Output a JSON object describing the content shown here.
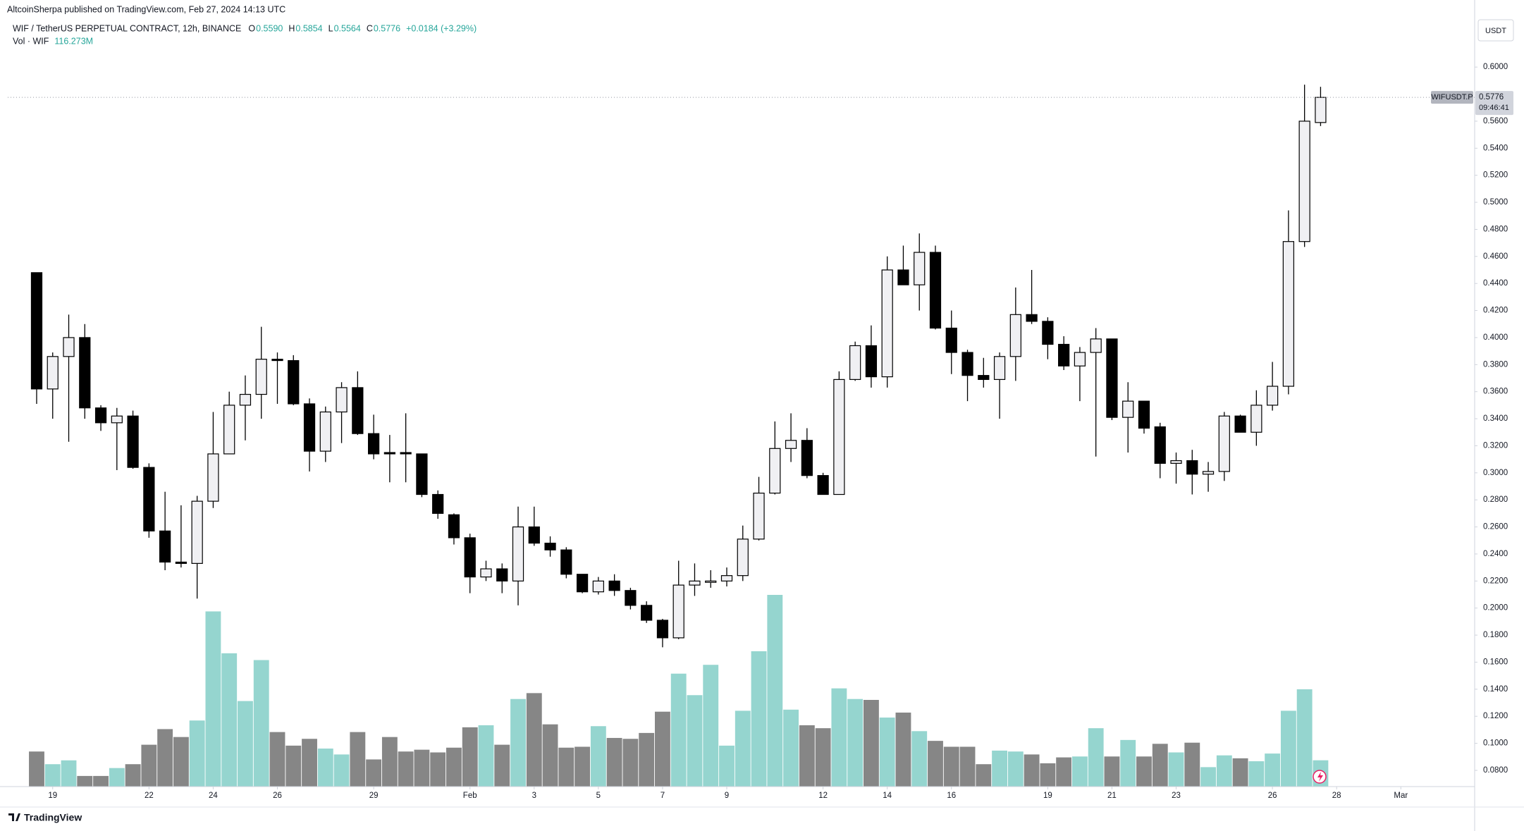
{
  "header": {
    "published": "AltcoinSherpa published on TradingView.com, Feb 27, 2024 14:13 UTC",
    "symbol": "WIF / TetherUS PERPETUAL CONTRACT, 12h, BINANCE",
    "ohlc_legend": [
      {
        "key": "O",
        "value": "0.5590"
      },
      {
        "key": "H",
        "value": "0.5854"
      },
      {
        "key": "L",
        "value": "0.5564"
      },
      {
        "key": "C",
        "value": "0.5776"
      }
    ],
    "change": "+0.0184 (+3.29%)",
    "vol_legend": "Vol · WIF",
    "vol_value": "116.273M",
    "currency": "USDT",
    "ticker": "WIFUSDT.P",
    "countdown": "09:46:41",
    "footer": "TradingView"
  },
  "chart_data": {
    "type": "candlestick",
    "open": [
      0.448,
      0.362,
      0.386,
      0.4,
      0.348,
      0.337,
      0.342,
      0.304,
      0.257,
      0.234,
      0.233,
      0.279,
      0.314,
      0.35,
      0.358,
      0.384,
      0.383,
      0.351,
      0.316,
      0.345,
      0.363,
      0.329,
      0.315,
      0.315,
      0.314,
      0.284,
      0.269,
      0.252,
      0.223,
      0.229,
      0.22,
      0.26,
      0.248,
      0.243,
      0.225,
      0.212,
      0.22,
      0.213,
      0.202,
      0.191,
      0.178,
      0.217,
      0.219,
      0.22,
      0.224,
      0.251,
      0.285,
      0.318,
      0.324,
      0.298,
      0.284,
      0.369,
      0.394,
      0.371,
      0.45,
      0.439,
      0.463,
      0.407,
      0.389,
      0.372,
      0.369,
      0.386,
      0.417,
      0.412,
      0.395,
      0.379,
      0.389,
      0.399,
      0.341,
      0.353,
      0.334,
      0.307,
      0.309,
      0.299,
      0.301,
      0.342,
      0.33,
      0.35,
      0.364,
      0.471,
      0.559
    ],
    "high": [
      0.448,
      0.389,
      0.417,
      0.41,
      0.35,
      0.348,
      0.346,
      0.307,
      0.286,
      0.276,
      0.283,
      0.345,
      0.36,
      0.372,
      0.408,
      0.389,
      0.387,
      0.355,
      0.349,
      0.367,
      0.375,
      0.343,
      0.328,
      0.344,
      0.314,
      0.287,
      0.27,
      0.255,
      0.235,
      0.233,
      0.275,
      0.275,
      0.253,
      0.245,
      0.225,
      0.223,
      0.225,
      0.215,
      0.205,
      0.192,
      0.235,
      0.233,
      0.228,
      0.23,
      0.261,
      0.297,
      0.338,
      0.344,
      0.333,
      0.3,
      0.375,
      0.397,
      0.409,
      0.46,
      0.468,
      0.477,
      0.468,
      0.42,
      0.391,
      0.385,
      0.389,
      0.437,
      0.45,
      0.415,
      0.401,
      0.393,
      0.407,
      0.399,
      0.367,
      0.353,
      0.337,
      0.315,
      0.317,
      0.308,
      0.345,
      0.343,
      0.361,
      0.382,
      0.494,
      0.587,
      0.5854
    ],
    "low": [
      0.351,
      0.34,
      0.323,
      0.34,
      0.331,
      0.302,
      0.303,
      0.252,
      0.228,
      0.23,
      0.207,
      0.274,
      0.314,
      0.324,
      0.34,
      0.351,
      0.35,
      0.301,
      0.308,
      0.322,
      0.328,
      0.31,
      0.293,
      0.293,
      0.282,
      0.266,
      0.247,
      0.211,
      0.22,
      0.211,
      0.202,
      0.246,
      0.238,
      0.222,
      0.211,
      0.21,
      0.209,
      0.199,
      0.189,
      0.171,
      0.177,
      0.209,
      0.215,
      0.216,
      0.22,
      0.25,
      0.284,
      0.308,
      0.296,
      0.284,
      0.284,
      0.368,
      0.363,
      0.363,
      0.439,
      0.42,
      0.406,
      0.373,
      0.353,
      0.363,
      0.34,
      0.368,
      0.41,
      0.384,
      0.376,
      0.353,
      0.312,
      0.339,
      0.315,
      0.329,
      0.296,
      0.292,
      0.284,
      0.286,
      0.294,
      0.33,
      0.32,
      0.346,
      0.358,
      0.467,
      0.5564
    ],
    "close": [
      0.362,
      0.386,
      0.4,
      0.348,
      0.337,
      0.342,
      0.304,
      0.257,
      0.234,
      0.233,
      0.279,
      0.314,
      0.35,
      0.358,
      0.384,
      0.383,
      0.351,
      0.316,
      0.345,
      0.363,
      0.329,
      0.314,
      0.314,
      0.314,
      0.284,
      0.27,
      0.252,
      0.223,
      0.229,
      0.22,
      0.26,
      0.248,
      0.243,
      0.225,
      0.212,
      0.22,
      0.213,
      0.202,
      0.191,
      0.178,
      0.217,
      0.22,
      0.22,
      0.224,
      0.251,
      0.285,
      0.318,
      0.324,
      0.298,
      0.284,
      0.369,
      0.394,
      0.371,
      0.45,
      0.439,
      0.463,
      0.407,
      0.389,
      0.372,
      0.369,
      0.386,
      0.417,
      0.412,
      0.395,
      0.379,
      0.389,
      0.399,
      0.341,
      0.353,
      0.333,
      0.307,
      0.309,
      0.299,
      0.301,
      0.342,
      0.33,
      0.35,
      0.364,
      0.471,
      0.56,
      0.5776
    ],
    "volume": [
      155,
      99,
      116,
      47,
      47,
      82,
      99,
      185,
      254,
      219,
      292,
      774,
      589,
      378,
      559,
      241,
      181,
      211,
      168,
      142,
      241,
      120,
      219,
      155,
      163,
      151,
      172,
      262,
      271,
      185,
      387,
      413,
      275,
      172,
      176,
      267,
      215,
      211,
      237,
      331,
      499,
      404,
      538,
      181,
      335,
      598,
      847,
      340,
      271,
      258,
      434,
      387,
      383,
      305,
      327,
      245,
      202,
      176,
      176,
      99,
      159,
      155,
      142,
      103,
      129,
      133,
      258,
      133,
      206,
      133,
      189,
      151,
      194,
      86,
      138,
      125,
      112,
      146,
      335,
      430,
      116.273
    ],
    "up_color": "#f0f0f3",
    "down_color": "#000000",
    "wick_color": "#000000",
    "volume_up_color": "#8fd3cc",
    "volume_down_color": "#808080",
    "xlim": [
      -1.8,
      89.6
    ],
    "xticks": [
      {
        "value": 1,
        "label": "19"
      },
      {
        "value": 7,
        "label": "22"
      },
      {
        "value": 11,
        "label": "24"
      },
      {
        "value": 15,
        "label": "26"
      },
      {
        "value": 21,
        "label": "29"
      },
      {
        "value": 27,
        "label": "Feb"
      },
      {
        "value": 31,
        "label": "3"
      },
      {
        "value": 35,
        "label": "5"
      },
      {
        "value": 39,
        "label": "7"
      },
      {
        "value": 43,
        "label": "9"
      },
      {
        "value": 49,
        "label": "12"
      },
      {
        "value": 53,
        "label": "14"
      },
      {
        "value": 57,
        "label": "16"
      },
      {
        "value": 63,
        "label": "19"
      },
      {
        "value": 67,
        "label": "21"
      },
      {
        "value": 71,
        "label": "23"
      },
      {
        "value": 77,
        "label": "26"
      },
      {
        "value": 81,
        "label": "28"
      },
      {
        "value": 85,
        "label": "Mar"
      }
    ],
    "ylim": [
      0.068,
      0.635
    ],
    "yticks": [
      {
        "value": 0.08,
        "label": "0.0800"
      },
      {
        "value": 0.1,
        "label": "0.1000"
      },
      {
        "value": 0.12,
        "label": "0.1200"
      },
      {
        "value": 0.14,
        "label": "0.1400"
      },
      {
        "value": 0.16,
        "label": "0.1600"
      },
      {
        "value": 0.18,
        "label": "0.1800"
      },
      {
        "value": 0.2,
        "label": "0.2000"
      },
      {
        "value": 0.22,
        "label": "0.2200"
      },
      {
        "value": 0.24,
        "label": "0.2400"
      },
      {
        "value": 0.26,
        "label": "0.2600"
      },
      {
        "value": 0.28,
        "label": "0.2800"
      },
      {
        "value": 0.3,
        "label": "0.3000"
      },
      {
        "value": 0.32,
        "label": "0.3200"
      },
      {
        "value": 0.34,
        "label": "0.3400"
      },
      {
        "value": 0.36,
        "label": "0.3600"
      },
      {
        "value": 0.38,
        "label": "0.3800"
      },
      {
        "value": 0.4,
        "label": "0.4000"
      },
      {
        "value": 0.42,
        "label": "0.4200"
      },
      {
        "value": 0.44,
        "label": "0.4400"
      },
      {
        "value": 0.46,
        "label": "0.4600"
      },
      {
        "value": 0.48,
        "label": "0.4800"
      },
      {
        "value": 0.5,
        "label": "0.5000"
      },
      {
        "value": 0.52,
        "label": "0.5200"
      },
      {
        "value": 0.54,
        "label": "0.5400"
      },
      {
        "value": 0.56,
        "label": "0.5600"
      },
      {
        "value": 0.6,
        "label": "0.6000"
      }
    ],
    "grid": false
  }
}
